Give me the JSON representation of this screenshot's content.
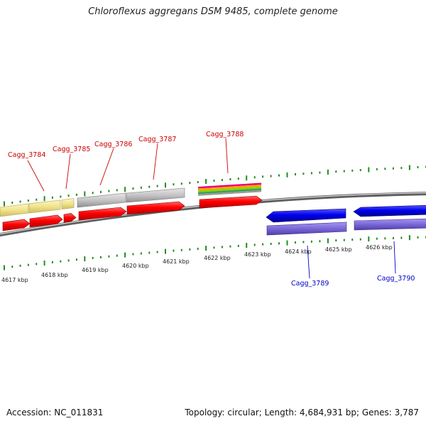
{
  "title": "Chloroflexus aggregans DSM 9485, complete genome",
  "footer": {
    "accession": "Accession: NC_011831",
    "stats": "Topology: circular; Length: 4,684,931 bp; Genes: 3,787"
  },
  "colors": {
    "forward_label": "#cc0000",
    "reverse_label": "#0000cc",
    "tick": "#228b22",
    "backbone": "#888888"
  },
  "coordinate_labels": [
    "4617 kbp",
    "4618 kbp",
    "4619 kbp",
    "4620 kbp",
    "4621 kbp",
    "4622 kbp",
    "4623 kbp",
    "4624 kbp",
    "4625 kbp",
    "4626 kbp"
  ],
  "genes": [
    {
      "label": "Cagg_3784",
      "strand": "forward"
    },
    {
      "label": "Cagg_3785",
      "strand": "forward"
    },
    {
      "label": "Cagg_3786",
      "strand": "forward"
    },
    {
      "label": "Cagg_3787",
      "strand": "forward"
    },
    {
      "label": "Cagg_3788",
      "strand": "forward"
    },
    {
      "label": "Cagg_3789",
      "strand": "reverse"
    },
    {
      "label": "Cagg_3790",
      "strand": "reverse"
    }
  ]
}
